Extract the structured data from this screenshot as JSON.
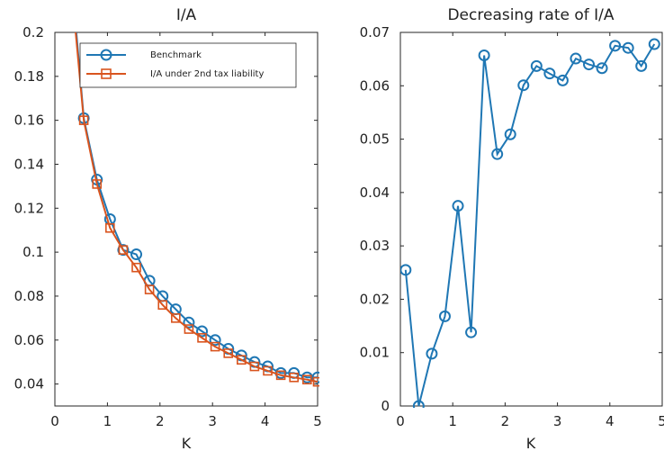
{
  "chart_data": [
    {
      "type": "line",
      "title": "I/A",
      "xlabel": "K",
      "ylabel": "",
      "xlim": [
        0,
        5
      ],
      "ylim": [
        0.03,
        0.2
      ],
      "xticks": [
        0,
        1,
        2,
        3,
        4,
        5
      ],
      "yticks": [
        0.04,
        0.06,
        0.08,
        0.1,
        0.12,
        0.14,
        0.16,
        0.18,
        0.2
      ],
      "ytick_labels": [
        "0.04",
        "0.06",
        "0.08",
        "0.1",
        "0.12",
        "0.14",
        "0.16",
        "0.18",
        "0.2"
      ],
      "legend": "top-right",
      "series": [
        {
          "name": "Benchmark",
          "marker": "circle",
          "color": "#1f77b4",
          "x": [
            0.3,
            0.55,
            0.8,
            1.05,
            1.3,
            1.55,
            1.8,
            2.05,
            2.3,
            2.55,
            2.8,
            3.05,
            3.3,
            3.55,
            3.8,
            4.05,
            4.3,
            4.55,
            4.8,
            5.0
          ],
          "y": [
            0.23,
            0.161,
            0.133,
            0.115,
            0.101,
            0.099,
            0.087,
            0.08,
            0.074,
            0.068,
            0.064,
            0.06,
            0.056,
            0.053,
            0.05,
            0.048,
            0.045,
            0.045,
            0.043,
            0.043
          ]
        },
        {
          "name": "I/A under 2nd tax liability",
          "marker": "square",
          "color": "#d9541e",
          "x": [
            0.3,
            0.55,
            0.8,
            1.05,
            1.3,
            1.55,
            1.8,
            2.05,
            2.3,
            2.55,
            2.8,
            3.05,
            3.3,
            3.55,
            3.8,
            4.05,
            4.3,
            4.55,
            4.8,
            5.0
          ],
          "y": [
            0.225,
            0.16,
            0.131,
            0.111,
            0.101,
            0.093,
            0.083,
            0.076,
            0.07,
            0.065,
            0.061,
            0.057,
            0.054,
            0.051,
            0.048,
            0.046,
            0.044,
            0.043,
            0.042,
            0.041
          ]
        }
      ]
    },
    {
      "type": "line",
      "title": "Decreasing rate of I/A",
      "xlabel": "K",
      "ylabel": "",
      "xlim": [
        0,
        5
      ],
      "ylim": [
        0,
        0.07
      ],
      "xticks": [
        0,
        1,
        2,
        3,
        4,
        5
      ],
      "yticks": [
        0,
        0.01,
        0.02,
        0.03,
        0.04,
        0.05,
        0.06,
        0.07
      ],
      "ytick_labels": [
        "0",
        "0.01",
        "0.02",
        "0.03",
        "0.04",
        "0.05",
        "0.06",
        "0.07"
      ],
      "series": [
        {
          "marker": "circle",
          "color": "#1f77b4",
          "x": [
            0.1,
            0.35,
            0.6,
            0.85,
            1.1,
            1.35,
            1.6,
            1.85,
            2.1,
            2.35,
            2.6,
            2.85,
            3.1,
            3.35,
            3.6,
            3.85,
            4.1,
            4.35,
            4.6,
            4.85
          ],
          "y": [
            0.0255,
            0.0,
            0.0098,
            0.0168,
            0.0375,
            0.0138,
            0.0657,
            0.0472,
            0.0509,
            0.0601,
            0.0637,
            0.0623,
            0.061,
            0.0651,
            0.064,
            0.0633,
            0.0675,
            0.0671,
            0.0637,
            0.0678
          ]
        }
      ]
    }
  ]
}
